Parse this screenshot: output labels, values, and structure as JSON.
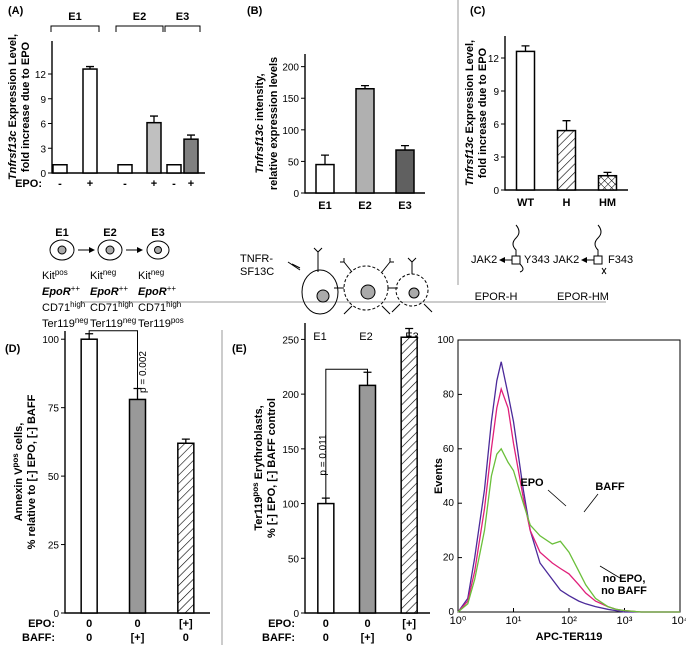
{
  "chart_data": [
    {
      "type": "bar",
      "panel": "(A)",
      "ylabel": [
        [
          {
            "text": "Tnfrsf13c",
            "style": "italic"
          },
          {
            "text": " Expression Level,"
          }
        ],
        [
          {
            "text": "fold increase due to EPO"
          }
        ]
      ],
      "groups": [
        "E1",
        "E2",
        "E3"
      ],
      "values": [
        1,
        12.6,
        1,
        6.1,
        1,
        4.1
      ],
      "errors": [
        0,
        0.3,
        0,
        0.8,
        0,
        0.5
      ],
      "colors": [
        "#ffffff",
        "#ffffff",
        "#ffffff",
        "#c0c0c0",
        "#ffffff",
        "#808080"
      ],
      "rows": [
        {
          "name": "EPO:",
          "labels": [
            "-",
            "+",
            "-",
            "+",
            "-",
            "+"
          ]
        }
      ],
      "ylim": [
        0,
        16
      ],
      "yticks": [
        0,
        3,
        6,
        9,
        12
      ]
    },
    {
      "type": "bar",
      "panel": "(B)",
      "ylabel": [
        [
          {
            "text": "Tnfrsf13c",
            "style": "italic"
          },
          {
            "text": " intensity,"
          }
        ],
        [
          {
            "text": "relative expression levels"
          }
        ]
      ],
      "categories": [
        "E1",
        "E2",
        "E3"
      ],
      "values": [
        45,
        165,
        68
      ],
      "errors": [
        15,
        5,
        7
      ],
      "colors": [
        "#ffffff",
        "#b0b0b0",
        "#606060"
      ],
      "ylim": [
        0,
        220
      ],
      "yticks": [
        0,
        50,
        100,
        150,
        200
      ]
    },
    {
      "type": "bar",
      "panel": "(C)",
      "ylabel": [
        [
          {
            "text": "Tnfrsf13c",
            "style": "italic"
          },
          {
            "text": " Expression Level,"
          }
        ],
        [
          {
            "text": "fold increase due to EPO"
          }
        ]
      ],
      "categories": [
        "WT",
        "H",
        "HM"
      ],
      "values": [
        12.6,
        5.4,
        1.3
      ],
      "errors": [
        0.5,
        0.9,
        0.3
      ],
      "colors": [
        "#ffffff",
        "#ffffff",
        "#ffffff"
      ],
      "patterns": [
        null,
        "hatch",
        "crosshatch"
      ],
      "ylim": [
        0,
        14
      ],
      "yticks": [
        0,
        3,
        6,
        9,
        12
      ]
    },
    {
      "type": "bar",
      "panel": "(D)",
      "ylabel": [
        [
          {
            "text": "Annexin V"
          },
          {
            "text": "pos",
            "style": "sup"
          },
          {
            "text": " cells,"
          }
        ],
        [
          {
            "text": "% relative to [-] EPO, [-] BAFF"
          }
        ]
      ],
      "values": [
        100,
        78,
        62
      ],
      "errors": [
        2,
        4,
        1.5
      ],
      "colors": [
        "#ffffff",
        "#999999",
        "#ffffff"
      ],
      "patterns": [
        null,
        null,
        "hatch"
      ],
      "rows": [
        {
          "name": "EPO:",
          "labels": [
            "0",
            "0",
            "[+]"
          ]
        },
        {
          "name": "BAFF:",
          "labels": [
            "0",
            "[+]",
            "0"
          ]
        }
      ],
      "annotation": "p = 0.002",
      "ylim": [
        0,
        103
      ],
      "yticks": [
        0,
        25,
        50,
        75,
        100
      ]
    },
    {
      "type": "bar",
      "panel": "(E)",
      "ylabel": [
        [
          {
            "text": "Ter119"
          },
          {
            "text": "pos",
            "style": "sup"
          },
          {
            "text": " Erythroblasts,"
          }
        ],
        [
          {
            "text": "% [-] EPO, [-] BAFF control"
          }
        ]
      ],
      "values": [
        100,
        208,
        252
      ],
      "errors": [
        5,
        12,
        8
      ],
      "colors": [
        "#ffffff",
        "#999999",
        "#ffffff"
      ],
      "patterns": [
        null,
        null,
        "hatch"
      ],
      "rows": [
        {
          "name": "EPO:",
          "labels": [
            "0",
            "0",
            "[+]"
          ]
        },
        {
          "name": "BAFF:",
          "labels": [
            "0",
            "[+]",
            "0"
          ]
        }
      ],
      "annotation": "p = 0.011",
      "ylim": [
        0,
        265
      ],
      "yticks": [
        0,
        50,
        100,
        150,
        200,
        250
      ]
    },
    {
      "type": "line",
      "xscale": "log",
      "xlabel": "APC-TER119",
      "ylabel": "Events",
      "x": [
        1,
        1.5,
        2,
        3,
        4,
        5,
        6,
        8,
        10,
        15,
        20,
        30,
        50,
        70,
        100,
        150,
        200,
        300,
        500,
        700,
        1000,
        2000,
        5000,
        10000
      ],
      "series": [
        {
          "name": [
            "no EPO,",
            "no BAFF"
          ],
          "color": "#4b2a9a",
          "values": [
            0,
            5,
            20,
            45,
            70,
            85,
            92,
            80,
            70,
            45,
            30,
            18,
            12,
            8,
            6,
            4,
            3,
            2,
            1,
            0.5,
            0,
            0,
            0,
            0
          ]
        },
        {
          "name": [
            "BAFF"
          ],
          "color": "#e0207a",
          "values": [
            0,
            4,
            15,
            38,
            60,
            75,
            82,
            75,
            62,
            42,
            30,
            22,
            18,
            16,
            14,
            10,
            7,
            4,
            2,
            1,
            0.5,
            0,
            0,
            0
          ]
        },
        {
          "name": [
            "EPO"
          ],
          "color": "#6abf3a",
          "values": [
            0,
            3,
            12,
            30,
            50,
            58,
            60,
            55,
            52,
            40,
            32,
            28,
            25,
            26,
            22,
            15,
            10,
            5,
            2,
            1,
            0.5,
            0,
            0,
            0
          ]
        }
      ],
      "xlim": [
        1,
        10000
      ],
      "xticks": [
        {
          "value": 1,
          "label": "10⁰"
        },
        {
          "value": 10,
          "label": "10¹"
        },
        {
          "value": 100,
          "label": "10²"
        },
        {
          "value": 1000,
          "label": "10³"
        },
        {
          "value": 10000,
          "label": "10⁴"
        }
      ],
      "ylim": [
        0,
        100
      ],
      "yticks": [
        0,
        20,
        40,
        60,
        80,
        100
      ]
    }
  ],
  "diagrams": {
    "A": {
      "cells": [
        {
          "name": "E1",
          "lines": [
            [
              {
                "text": "Kit"
              },
              {
                "text": "pos",
                "style": "sup"
              }
            ],
            [
              {
                "text": "EpoR",
                "style": "bold-italic"
              },
              {
                "text": "++",
                "style": "sup"
              }
            ],
            [
              {
                "text": "CD71"
              },
              {
                "text": "high",
                "style": "sup"
              }
            ],
            [
              {
                "text": "Ter119"
              },
              {
                "text": "neg",
                "style": "sup"
              }
            ]
          ]
        },
        {
          "name": "E2",
          "lines": [
            [
              {
                "text": "Kit"
              },
              {
                "text": "neg",
                "style": "sup"
              }
            ],
            [
              {
                "text": "EpoR",
                "style": "bold-italic"
              },
              {
                "text": "++",
                "style": "sup"
              }
            ],
            [
              {
                "text": "CD71"
              },
              {
                "text": "high",
                "style": "sup"
              }
            ],
            [
              {
                "text": "Ter119"
              },
              {
                "text": "neg",
                "style": "sup"
              }
            ]
          ]
        },
        {
          "name": "E3",
          "lines": [
            [
              {
                "text": "Kit"
              },
              {
                "text": "neg",
                "style": "sup"
              }
            ],
            [
              {
                "text": "EpoR",
                "style": "bold-italic"
              },
              {
                "text": "++",
                "style": "sup"
              }
            ],
            [
              {
                "text": "CD71"
              },
              {
                "text": "high",
                "style": "sup"
              }
            ],
            [
              {
                "text": "Ter119"
              },
              {
                "text": "pos",
                "style": "sup"
              }
            ]
          ]
        }
      ]
    },
    "B": {
      "receptor": [
        "TNFR-",
        "SF13C"
      ],
      "cells": [
        "E1",
        "E2",
        "E3"
      ]
    },
    "C": {
      "constructs": [
        {
          "kinase": "JAK2",
          "site": "Y343",
          "name": "EPOR-H"
        },
        {
          "kinase": "JAK2",
          "site": "F343",
          "name": "EPOR-HM"
        }
      ]
    }
  }
}
